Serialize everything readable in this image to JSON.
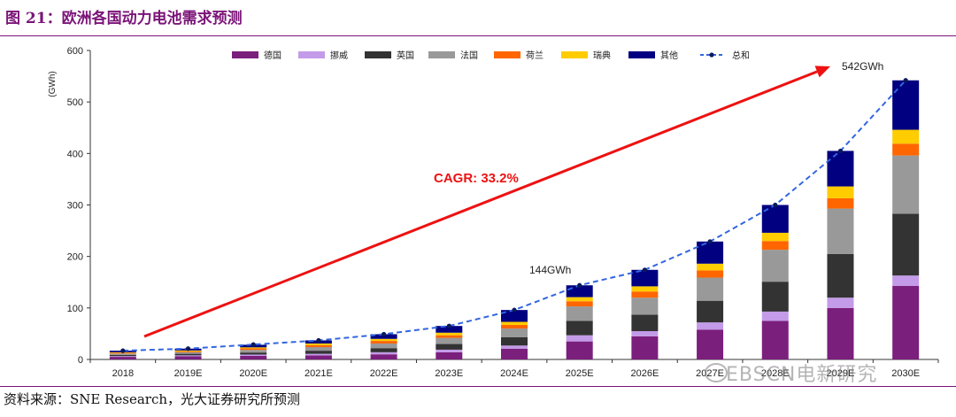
{
  "figure": {
    "title": "图 21：欧洲各国动力电池需求预测",
    "source": "资料来源：SNE Research，光大证券研究所预测",
    "watermark": "EBSCN电新研究"
  },
  "chart_data": {
    "type": "bar",
    "stacked": true,
    "title": "",
    "ylabel": "(GWh)",
    "xlabel": "",
    "ylim": [
      0,
      600
    ],
    "yticks": [
      0,
      100,
      200,
      300,
      400,
      500,
      600
    ],
    "categories": [
      "2018",
      "2019E",
      "2020E",
      "2021E",
      "2022E",
      "2023E",
      "2024E",
      "2025E",
      "2026E",
      "2027E",
      "2028E",
      "2029E",
      "2030E"
    ],
    "series": [
      {
        "name": "德国",
        "color": "#7b1f7d",
        "values": [
          5,
          6,
          7,
          8,
          10,
          14,
          21,
          35,
          45,
          58,
          75,
          100,
          143
        ]
      },
      {
        "name": "挪威",
        "color": "#c39be8",
        "values": [
          1.5,
          2,
          2.5,
          3,
          4,
          5,
          6,
          12,
          10,
          14,
          18,
          20,
          20
        ]
      },
      {
        "name": "英国",
        "color": "#333333",
        "values": [
          2.5,
          3,
          4,
          6,
          8,
          11,
          16,
          28,
          32,
          42,
          58,
          85,
          120
        ]
      },
      {
        "name": "法国",
        "color": "#999999",
        "values": [
          2.5,
          3,
          5,
          7,
          9,
          12,
          17,
          28,
          33,
          45,
          62,
          88,
          113
        ]
      },
      {
        "name": "荷兰",
        "color": "#ff6600",
        "values": [
          1.5,
          2,
          3,
          4,
          5,
          5,
          7,
          10,
          12,
          14,
          17,
          20,
          23
        ]
      },
      {
        "name": "瑞典",
        "color": "#ffcc00",
        "values": [
          1,
          1.5,
          2,
          3,
          4,
          5,
          6,
          8,
          10,
          13,
          16,
          23,
          27
        ]
      },
      {
        "name": "其他",
        "color": "#000080",
        "values": [
          3,
          3.5,
          5,
          6,
          9,
          13,
          23,
          23,
          32,
          43,
          54,
          69,
          96
        ]
      }
    ],
    "total": {
      "name": "总和",
      "color": "#3366e0",
      "values": [
        17,
        21,
        29,
        37,
        49,
        65,
        96,
        144,
        174,
        229,
        300,
        405,
        542
      ]
    },
    "annotations": {
      "cagr_label": "CAGR: 33.2%",
      "label_2025": "144GWh",
      "label_2030": "542GWh"
    }
  }
}
